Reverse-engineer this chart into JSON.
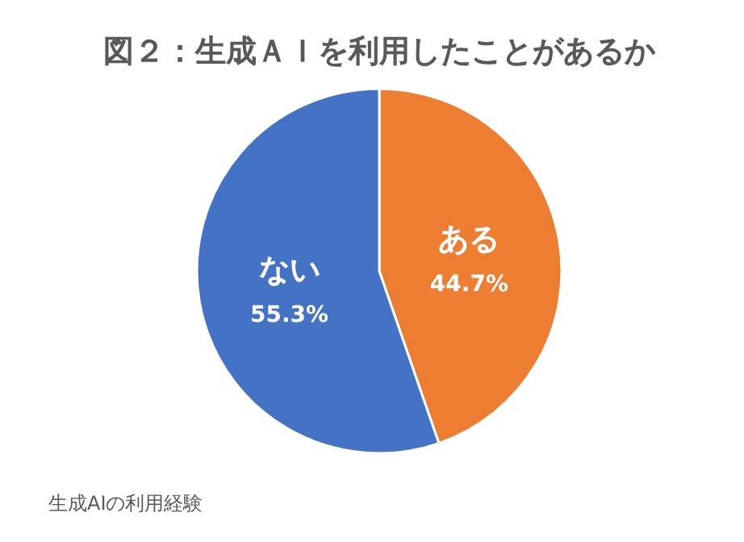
{
  "chart_data": {
    "type": "pie",
    "title": "図２：生成ＡＩを利用したことがあるか",
    "categories": [
      "ある",
      "ない"
    ],
    "values": [
      44.7,
      55.3
    ],
    "colors": [
      "#ed7d31",
      "#4472c4"
    ],
    "value_labels": [
      "44.7%",
      "55.3%"
    ],
    "legend": false,
    "annotations": [
      "生成AIの利用経験"
    ]
  }
}
